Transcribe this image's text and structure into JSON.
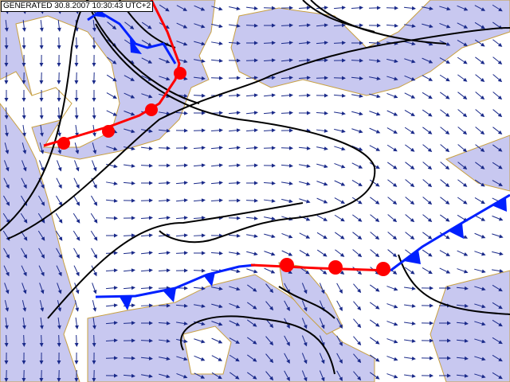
{
  "header": {
    "generated": "GENERATED 30.8.2007 10:30:43 UTC+2"
  }
}
